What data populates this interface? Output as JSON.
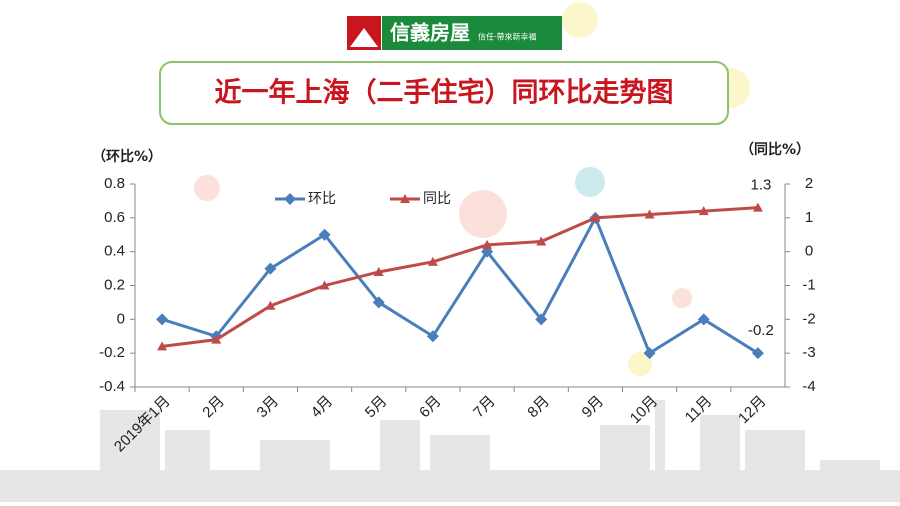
{
  "logo": {
    "name": "信義房屋",
    "slogan": "信任·帶來新幸福"
  },
  "chart_data": {
    "type": "line",
    "title": "近一年上海（二手住宅）同环比走势图",
    "y_label": "（环比%）",
    "y2_label": "（同比%）",
    "categories": [
      "2019年1月",
      "2月",
      "3月",
      "4月",
      "5月",
      "6月",
      "7月",
      "8月",
      "9月",
      "10月",
      "11月",
      "12月"
    ],
    "series": [
      {
        "name": "环比",
        "color": "#4a7ebb",
        "marker": "diamond",
        "values": [
          0,
          -0.1,
          0.3,
          0.5,
          0.1,
          -0.1,
          0.4,
          0,
          0.6,
          -0.2,
          0,
          -0.2
        ]
      },
      {
        "name": "同比",
        "color": "#be4b48",
        "marker": "triangle",
        "axis": "y2",
        "values": [
          -2.8,
          -2.6,
          -1.6,
          -1.0,
          -0.6,
          -0.3,
          0.2,
          0.3,
          1.0,
          1.1,
          1.2,
          1.3
        ]
      }
    ],
    "ylim": [
      -0.4,
      0.8
    ],
    "yticks": [
      -0.4,
      -0.2,
      0,
      0.2,
      0.4,
      0.6,
      0.8
    ],
    "y2lim": [
      -4,
      2
    ],
    "y2ticks": [
      -4,
      -3,
      -2,
      -1,
      0,
      1,
      2
    ],
    "labeled_points": [
      [
        1,
        11
      ],
      [
        0,
        11
      ]
    ],
    "legend": "top"
  }
}
